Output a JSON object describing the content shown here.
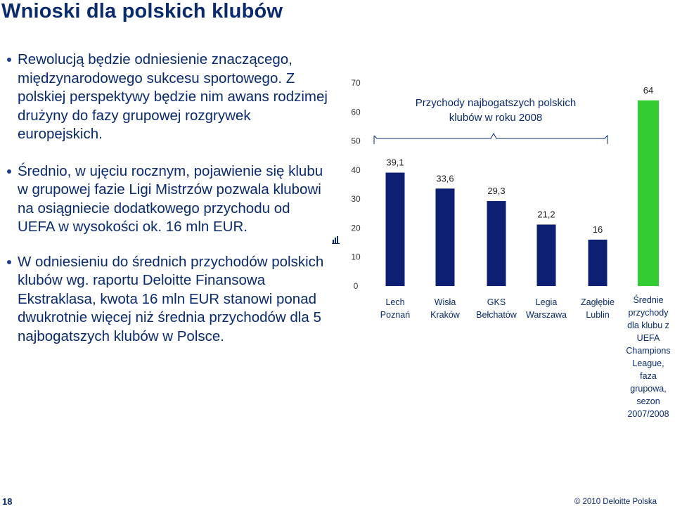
{
  "slide": {
    "title": "Wnioski dla polskich klubów",
    "bullets": [
      "Rewolucją będzie odniesienie znaczącego, międzynarodowego sukcesu sportowego. Z polskiej perspektywy będzie nim awans rodzimej drużyny do fazy grupowej rozgrywek europejskich.",
      "Średnio, w ujęciu rocznym, pojawienie się klubu w grupowej fazie Ligi Mistrzów pozwala klubowi na osiągniecie dodatkowego przychodu od UEFA w wysokości ok. 16 mln EUR.",
      "W odniesieniu do średnich przychodów polskich klubów wg. raportu Deloitte Finansowa Ekstraklasa, kwota 16 mln EUR stanowi ponad dwukrotnie więcej niż średnia przychodów dla 5 najbogatszych klubów w Polsce."
    ],
    "page_number": "18",
    "copyright": "© 2010 Deloitte Polska",
    "marker_icon": "small-chart-icon"
  },
  "chart_data": {
    "type": "bar",
    "categories": [
      [
        "Lech",
        "Poznań"
      ],
      [
        "Wisła",
        "Kraków"
      ],
      [
        "GKS",
        "Bełchatów"
      ],
      [
        "Legia",
        "Warszawa"
      ],
      [
        "Zagłębie",
        "Lublin"
      ],
      [
        "Średnie",
        "przychody",
        "dla klubu z",
        "UEFA",
        "Champions",
        "League,",
        "faza",
        "grupowa,",
        "sezon",
        "2007/2008"
      ]
    ],
    "values": [
      39.1,
      33.6,
      29.3,
      21.2,
      16,
      64
    ],
    "value_labels": [
      "39,1",
      "33,6",
      "29,3",
      "21,2",
      "16",
      "64"
    ],
    "bar_colors": [
      "#0d1f73",
      "#0d1f73",
      "#0d1f73",
      "#0d1f73",
      "#0d1f73",
      "#33cc33"
    ],
    "ylim": [
      0,
      70
    ],
    "yticks": [
      "0",
      "10",
      "20",
      "30",
      "40",
      "50",
      "60",
      "70"
    ],
    "annotation": [
      "Przychody najbogatszych polskich",
      "klubów w roku 2008"
    ],
    "grid": false
  }
}
